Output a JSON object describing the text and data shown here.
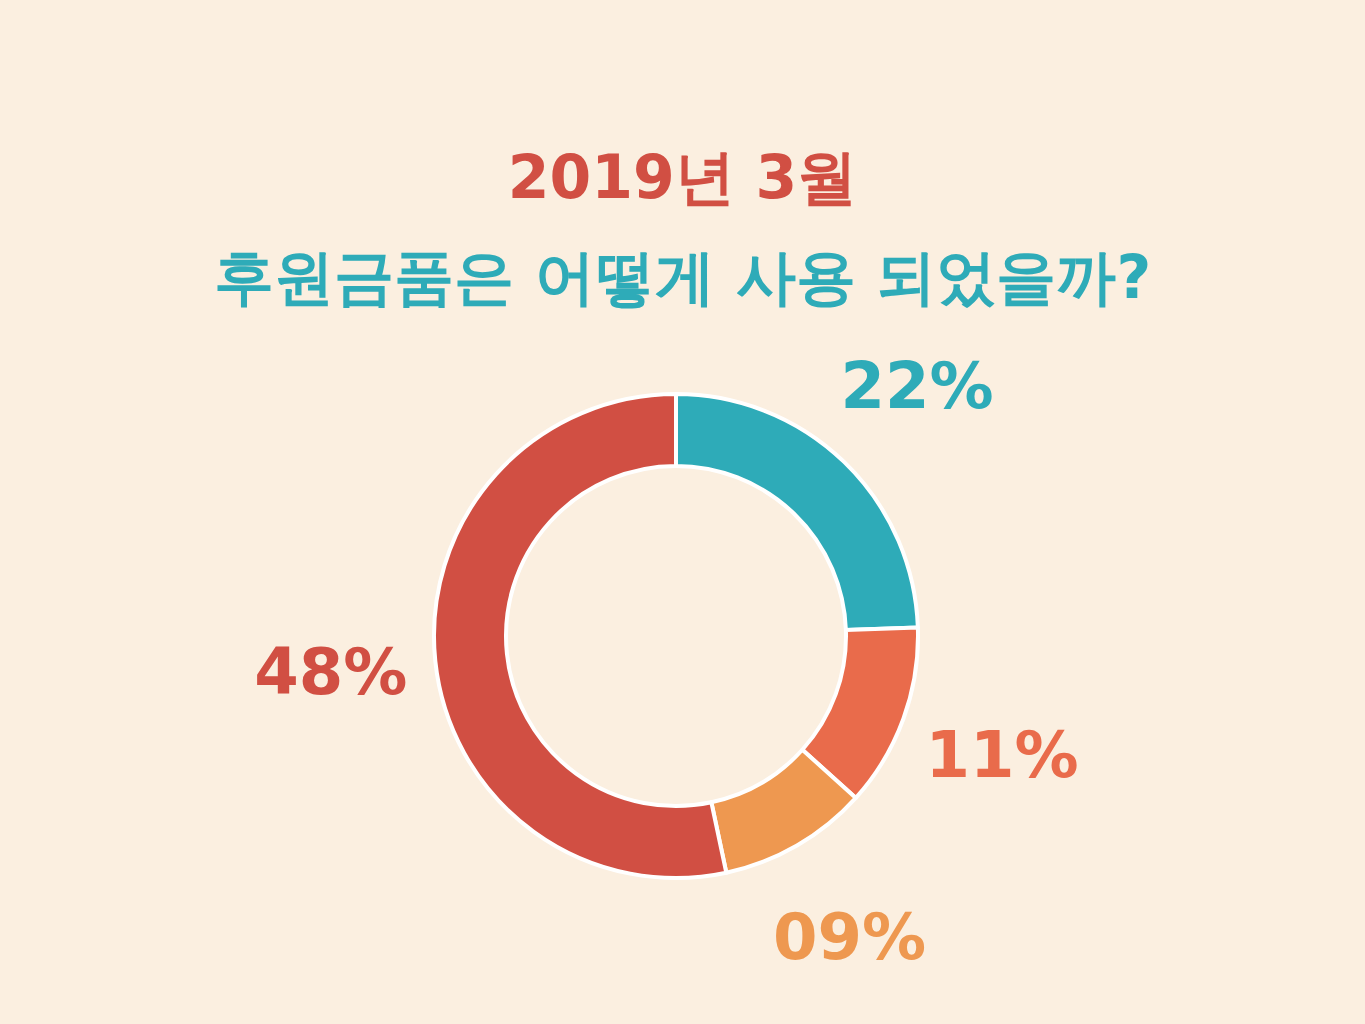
{
  "chart_data": {
    "type": "donut",
    "title": "2019년 3월",
    "subtitle": "후원금품은 어떻게 사용 되었을까?",
    "categories": [
      null,
      null,
      null,
      null
    ],
    "values": [
      22,
      11,
      9,
      48
    ],
    "colors": [
      "#2eabb8",
      "#e96b4b",
      "#ee9850",
      "#d14f43"
    ],
    "value_labels": [
      "22%",
      "11%",
      "09%",
      "48%"
    ]
  }
}
